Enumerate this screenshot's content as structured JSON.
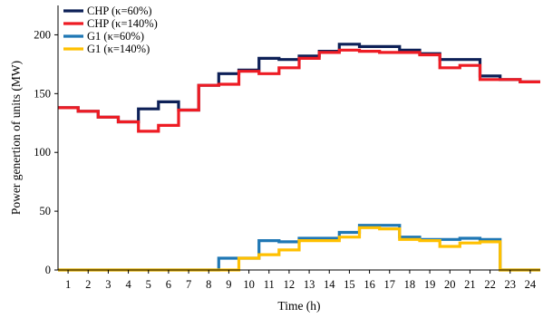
{
  "chart_data": {
    "type": "line",
    "step": true,
    "xlabel": "Time (h)",
    "ylabel": "Power genertion of units (MW)",
    "x": [
      1,
      2,
      3,
      4,
      5,
      6,
      7,
      8,
      9,
      10,
      11,
      12,
      13,
      14,
      15,
      16,
      17,
      18,
      19,
      20,
      21,
      22,
      23,
      24
    ],
    "xticks": [
      "1",
      "2",
      "3",
      "4",
      "5",
      "6",
      "7",
      "8",
      "9",
      "10",
      "11",
      "12",
      "13",
      "14",
      "15",
      "16",
      "17",
      "18",
      "19",
      "20",
      "21",
      "22",
      "23",
      "24"
    ],
    "xlim": [
      0.5,
      24.5
    ],
    "ylim": [
      0,
      225
    ],
    "yticks": [
      "0",
      "50",
      "100",
      "150",
      "200"
    ],
    "grid": false,
    "legend_position": "top-left",
    "series": [
      {
        "name": "CHP (κ=60%)",
        "color": "#0d2057",
        "values": [
          138,
          135,
          130,
          126,
          137,
          143,
          136,
          157,
          167,
          170,
          180,
          179,
          182,
          186,
          192,
          190,
          190,
          187,
          184,
          179,
          179,
          165,
          162,
          160
        ]
      },
      {
        "name": "CHP (κ=140%)",
        "color": "#ee1c24",
        "values": [
          138,
          135,
          130,
          126,
          118,
          123,
          136,
          157,
          158,
          169,
          167,
          172,
          180,
          185,
          187,
          186,
          185,
          185,
          183,
          172,
          174,
          162,
          162,
          160
        ]
      },
      {
        "name": "G1 (κ=60%)",
        "color": "#1f77b4",
        "values": [
          0,
          0,
          0,
          0,
          0,
          0,
          0,
          0,
          10,
          10,
          25,
          24,
          27,
          27,
          32,
          38,
          38,
          28,
          26,
          26,
          27,
          26,
          0,
          0
        ]
      },
      {
        "name": "G1 (κ=140%)",
        "color": "#ffc000",
        "values": [
          0,
          0,
          0,
          0,
          0,
          0,
          0,
          0,
          0,
          10,
          13,
          17,
          25,
          25,
          28,
          36,
          35,
          26,
          25,
          20,
          23,
          24,
          0,
          0
        ]
      }
    ]
  }
}
